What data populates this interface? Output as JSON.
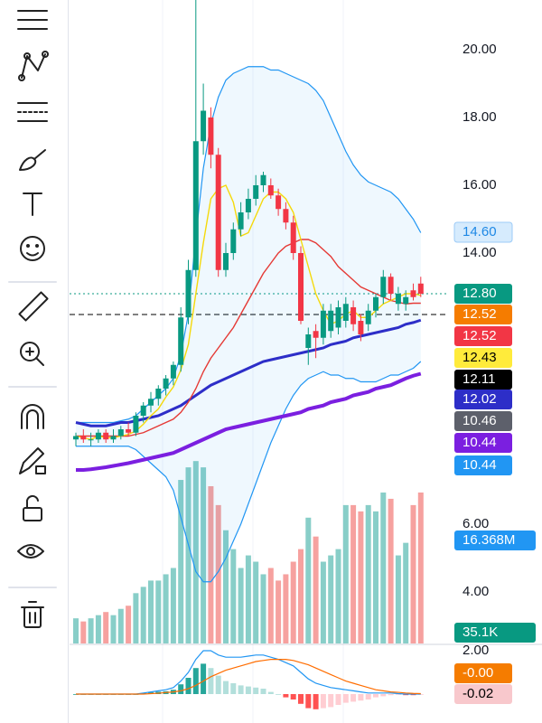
{
  "chart_data": {
    "type": "candlestick",
    "price_axis": {
      "ticks": [
        {
          "value": 20,
          "label": "20.00"
        },
        {
          "value": 18,
          "label": "18.00"
        },
        {
          "value": 16,
          "label": "16.00"
        },
        {
          "value": 14,
          "label": "14.00"
        },
        {
          "value": 6,
          "label": "6.00"
        },
        {
          "value": 4,
          "label": "4.00"
        }
      ]
    },
    "price_tags": [
      {
        "label": "14.60",
        "color": "#d6ebfd",
        "text_color": "#1e88e5"
      },
      {
        "label": "12.80",
        "color": "#089981",
        "text_color": "#ffffff"
      },
      {
        "label": "12.52",
        "color": "#f57c00",
        "text_color": "#ffffff"
      },
      {
        "label": "12.52",
        "color": "#f23645",
        "text_color": "#ffffff"
      },
      {
        "label": "12.43",
        "color": "#ffeb3b",
        "text_color": "#000000"
      },
      {
        "label": "12.11",
        "color": "#000000",
        "text_color": "#ffffff"
      },
      {
        "label": "12.02",
        "color": "#2d2ec8",
        "text_color": "#ffffff"
      },
      {
        "label": "10.46",
        "color": "#5d606b",
        "text_color": "#ffffff"
      },
      {
        "label": "10.44",
        "color": "#7b1fe0",
        "text_color": "#ffffff"
      },
      {
        "label": "10.44",
        "color": "#2196f3",
        "text_color": "#ffffff"
      }
    ],
    "volume_tags": [
      {
        "label": "16.368M",
        "color": "#2196f3",
        "text_color": "#ffffff"
      },
      {
        "label": "35.1K",
        "color": "#089981",
        "text_color": "#ffffff"
      }
    ],
    "macd_axis": {
      "ticks": [
        {
          "value": 2,
          "label": "2.00"
        }
      ]
    },
    "macd_tags": [
      {
        "label": "-0.00",
        "color": "#f57c00",
        "text_color": "#ffffff"
      },
      {
        "label": "-0.02",
        "color": "#f8c8cc",
        "text_color": "#000000"
      }
    ],
    "open": [
      8.5,
      8.6,
      8.5,
      8.5,
      8.7,
      8.5,
      8.6,
      8.8,
      8.7,
      9.2,
      9.5,
      9.7,
      10.0,
      10.3,
      10.7,
      12.1,
      13.5,
      17.3,
      18.0,
      16.9,
      13.5,
      14.0,
      14.7,
      15.2,
      15.6,
      16.0,
      16.0,
      15.7,
      15.3,
      14.9,
      14.0,
      11.2,
      11.7,
      11.5,
      11.7,
      11.8,
      12.0,
      12.4,
      12.0,
      11.9,
      12.3,
      12.7,
      13.3,
      12.5,
      12.5,
      12.9,
      13.1
    ],
    "high": [
      8.7,
      8.8,
      8.7,
      8.8,
      8.8,
      8.8,
      8.9,
      9.0,
      9.3,
      9.6,
      9.9,
      10.1,
      10.4,
      10.8,
      12.4,
      13.8,
      21.5,
      19.0,
      18.3,
      17.1,
      14.3,
      14.9,
      15.5,
      15.9,
      16.3,
      16.4,
      16.2,
      15.9,
      15.5,
      15.1,
      14.2,
      11.8,
      11.9,
      12.5,
      12.5,
      12.6,
      12.7,
      12.6,
      12.2,
      12.5,
      12.8,
      13.5,
      13.4,
      13.0,
      12.9,
      13.1,
      13.3
    ],
    "low": [
      8.3,
      8.4,
      8.3,
      8.4,
      8.4,
      8.4,
      8.5,
      8.6,
      8.6,
      9.0,
      9.3,
      9.5,
      9.8,
      10.1,
      10.5,
      11.9,
      13.3,
      16.9,
      16.5,
      13.3,
      13.3,
      13.8,
      14.5,
      15.0,
      15.4,
      15.8,
      15.6,
      15.1,
      14.7,
      13.8,
      11.9,
      10.7,
      10.9,
      11.3,
      11.5,
      11.6,
      11.8,
      11.7,
      11.4,
      11.7,
      12.1,
      12.5,
      12.6,
      12.3,
      12.3,
      12.6,
      12.7
    ],
    "close": [
      8.6,
      8.5,
      8.5,
      8.7,
      8.5,
      8.6,
      8.8,
      8.7,
      9.2,
      9.5,
      9.7,
      10.0,
      10.3,
      10.7,
      12.1,
      13.5,
      17.3,
      18.2,
      16.9,
      13.5,
      14.0,
      14.7,
      15.2,
      15.6,
      16.0,
      16.3,
      15.7,
      15.3,
      14.9,
      14.0,
      12.0,
      11.6,
      11.5,
      12.3,
      12.3,
      12.4,
      12.5,
      11.9,
      11.6,
      12.3,
      12.7,
      13.3,
      12.8,
      12.8,
      12.7,
      12.7,
      12.8
    ],
    "volume": [
      4,
      3.5,
      4,
      4.5,
      5,
      4.5,
      5.5,
      6,
      8,
      9,
      10,
      10,
      11,
      12,
      26,
      28,
      29,
      28,
      25,
      22,
      18,
      15,
      12,
      14,
      13,
      11,
      12,
      10,
      11,
      13,
      15,
      20,
      17,
      13,
      14,
      15,
      22,
      22,
      21,
      22,
      21,
      24,
      23,
      14,
      16,
      22,
      24
    ],
    "overlays": [
      {
        "color": "#2196f3",
        "width": 1.2,
        "values": [
          9.0,
          9.0,
          9.0,
          9.0,
          9.0,
          9.0,
          9.05,
          9.1,
          9.2,
          9.4,
          9.6,
          9.8,
          10.0,
          10.3,
          11.0,
          12.2,
          14.5,
          16.5,
          17.8,
          18.6,
          19.1,
          19.3,
          19.4,
          19.5,
          19.5,
          19.5,
          19.4,
          19.4,
          19.3,
          19.2,
          19.1,
          19.0,
          18.8,
          18.5,
          18.0,
          17.5,
          17.0,
          16.6,
          16.3,
          16.1,
          16.0,
          15.9,
          15.8,
          15.6,
          15.3,
          15.0,
          14.6
        ]
      },
      {
        "color": "#2196f3",
        "width": 1.2,
        "values": [
          8.3,
          8.3,
          8.3,
          8.3,
          8.3,
          8.3,
          8.3,
          8.3,
          8.2,
          8.0,
          7.8,
          7.6,
          7.4,
          7.0,
          6.2,
          5.4,
          4.6,
          4.3,
          4.3,
          4.6,
          5.0,
          5.5,
          6.0,
          6.6,
          7.2,
          7.8,
          8.4,
          8.9,
          9.4,
          9.8,
          10.1,
          10.3,
          10.4,
          10.5,
          10.4,
          10.4,
          10.3,
          10.3,
          10.2,
          10.2,
          10.2,
          10.3,
          10.4,
          10.4,
          10.5,
          10.6,
          10.8
        ]
      },
      {
        "color": "#7b1fe0",
        "width": 4,
        "values": [
          7.6,
          7.6,
          7.62,
          7.65,
          7.68,
          7.72,
          7.76,
          7.8,
          7.85,
          7.9,
          7.95,
          8.0,
          8.05,
          8.1,
          8.2,
          8.3,
          8.4,
          8.5,
          8.6,
          8.7,
          8.8,
          8.85,
          8.9,
          8.95,
          9.0,
          9.05,
          9.1,
          9.15,
          9.2,
          9.25,
          9.3,
          9.4,
          9.45,
          9.5,
          9.6,
          9.65,
          9.7,
          9.8,
          9.85,
          9.9,
          10.0,
          10.05,
          10.1,
          10.2,
          10.3,
          10.38,
          10.44
        ]
      },
      {
        "color": "#2d2ec8",
        "width": 3,
        "values": [
          9.0,
          8.95,
          8.9,
          8.9,
          8.9,
          8.95,
          9.0,
          9.0,
          9.05,
          9.1,
          9.15,
          9.2,
          9.3,
          9.4,
          9.5,
          9.65,
          9.8,
          9.95,
          10.1,
          10.2,
          10.3,
          10.4,
          10.5,
          10.6,
          10.7,
          10.8,
          10.85,
          10.9,
          10.95,
          11.0,
          11.05,
          11.1,
          11.15,
          11.2,
          11.3,
          11.35,
          11.4,
          11.5,
          11.55,
          11.6,
          11.65,
          11.7,
          11.75,
          11.8,
          11.9,
          11.95,
          12.02
        ]
      },
      {
        "color": "#e53935",
        "width": 1.4,
        "values": [
          8.6,
          8.6,
          8.6,
          8.6,
          8.6,
          8.6,
          8.6,
          8.6,
          8.65,
          8.7,
          8.8,
          8.9,
          9.0,
          9.1,
          9.3,
          9.6,
          10.0,
          10.5,
          10.9,
          11.2,
          11.5,
          11.8,
          12.2,
          12.6,
          13.0,
          13.4,
          13.7,
          14.0,
          14.2,
          14.3,
          14.4,
          14.4,
          14.3,
          14.1,
          13.9,
          13.6,
          13.4,
          13.2,
          13.0,
          12.9,
          12.8,
          12.7,
          12.6,
          12.55,
          12.5,
          12.52,
          12.52
        ]
      },
      {
        "color": "#f5d90a",
        "width": 1.4,
        "values": [
          8.6,
          8.55,
          8.5,
          8.6,
          8.55,
          8.55,
          8.6,
          8.65,
          8.75,
          8.95,
          9.2,
          9.4,
          9.75,
          10.05,
          10.55,
          11.3,
          12.8,
          14.3,
          15.6,
          15.9,
          16.0,
          15.5,
          14.5,
          14.6,
          15.1,
          15.6,
          15.8,
          15.8,
          15.6,
          15.2,
          14.4,
          13.6,
          12.8,
          12.3,
          11.9,
          12.0,
          12.2,
          12.3,
          12.1,
          12.1,
          12.3,
          12.5,
          12.6,
          12.7,
          12.8,
          12.8,
          12.75
        ]
      }
    ],
    "macd": [
      0,
      0,
      0,
      0,
      0,
      0,
      0,
      0,
      0,
      0.05,
      0.1,
      0.15,
      0.2,
      0.3,
      0.6,
      1.0,
      1.6,
      2.0,
      2.0,
      1.8,
      1.7,
      1.7,
      1.7,
      1.75,
      1.8,
      1.8,
      1.7,
      1.6,
      1.45,
      1.3,
      1.0,
      0.7,
      0.5,
      0.4,
      0.3,
      0.25,
      0.2,
      0.15,
      0.1,
      0.05,
      0.05,
      0.05,
      0.05,
      0.02,
      0,
      0,
      0
    ],
    "signal": [
      0,
      0,
      0,
      0,
      0,
      0,
      0,
      0,
      0,
      0,
      0.02,
      0.04,
      0.07,
      0.1,
      0.15,
      0.25,
      0.4,
      0.6,
      0.8,
      0.95,
      1.1,
      1.2,
      1.3,
      1.4,
      1.5,
      1.55,
      1.6,
      1.6,
      1.6,
      1.55,
      1.45,
      1.35,
      1.2,
      1.05,
      0.9,
      0.75,
      0.6,
      0.5,
      0.4,
      0.3,
      0.2,
      0.15,
      0.1,
      0.08,
      0.05,
      0.03,
      0.02
    ],
    "histogram": [
      0,
      0,
      0,
      0,
      0,
      0,
      0,
      0,
      0,
      0.05,
      0.08,
      0.11,
      0.13,
      0.2,
      0.45,
      0.75,
      1.2,
      1.4,
      1.2,
      0.85,
      0.6,
      0.5,
      0.4,
      0.35,
      0.3,
      0.25,
      0.1,
      0,
      -0.15,
      -0.25,
      -0.45,
      -0.65,
      -0.7,
      -0.65,
      -0.6,
      -0.5,
      -0.4,
      -0.35,
      -0.3,
      -0.25,
      -0.15,
      -0.1,
      -0.05,
      -0.03,
      -0.05,
      -0.05,
      -0.03
    ]
  }
}
